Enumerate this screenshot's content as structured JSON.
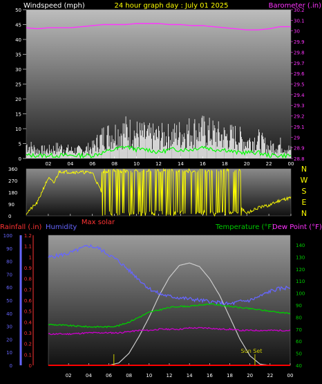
{
  "header": {
    "left_label": "Windspeed (mph)",
    "center_label": "24 hour graph day : July 01 2025",
    "right_label": "Barometer (.in)"
  },
  "wind_panel": {
    "y_left_ticks": [
      "50",
      "45",
      "40",
      "35",
      "30",
      "25",
      "20",
      "15",
      "10",
      "5",
      "0"
    ],
    "y_right_ticks": [
      "30.2",
      "30.1",
      "30",
      "29.9",
      "29.8",
      "29.7",
      "29.6",
      "29.5",
      "29.4",
      "29.3",
      "29.2",
      "29.1",
      "29",
      "28.9",
      "28.8"
    ],
    "x_ticks": [
      "02",
      "04",
      "06",
      "08",
      "10",
      "12",
      "14",
      "16",
      "18",
      "20",
      "22",
      "00"
    ]
  },
  "direction_panel": {
    "y_ticks": [
      "360",
      "270",
      "180",
      "90",
      "0"
    ],
    "compass": [
      "N",
      "W",
      "S",
      "E",
      "N"
    ],
    "x_ticks": [
      "02",
      "04",
      "06",
      "08",
      "10",
      "12",
      "14",
      "16",
      "18",
      "20",
      "22",
      "00"
    ],
    "below_label": "Max solar"
  },
  "temp_panel": {
    "labels": {
      "rainfall": "Rainfall (.in)",
      "humidity": "Humidity",
      "temperature": "Temperature (°F)",
      "dewpoint": "Dew Point (°F)",
      "sunset": "Sun Set"
    },
    "humidity_ticks": [
      "100",
      "90",
      "80",
      "70",
      "60",
      "50",
      "40",
      "30",
      "20",
      "10",
      "0"
    ],
    "rain_ticks": [
      "1.2",
      "1.1",
      "1",
      "0.9",
      "0.8",
      "0.7",
      "0.6",
      "0.5",
      "0.4",
      "0.3",
      "0.2",
      "0.1",
      "0"
    ],
    "temp_ticks": [
      "140",
      "130",
      "120",
      "110",
      "100",
      "90",
      "80",
      "70",
      "60",
      "50",
      "40"
    ],
    "x_ticks": [
      "02",
      "04",
      "06",
      "08",
      "10",
      "12",
      "14",
      "16",
      "18",
      "20",
      "22",
      "00"
    ]
  },
  "colors": {
    "windspeed": "#ffffff",
    "windavg": "#00ff00",
    "barometer": "#ff33ff",
    "direction": "#ffff00",
    "humidity": "#6666ff",
    "temperature": "#00cc00",
    "dewpoint": "#cc00cc",
    "rain": "#ff0000",
    "solar": "#cccccc",
    "sunmarker": "#cccc00"
  },
  "chart_data": [
    {
      "type": "line",
      "title": "24 hour graph day : July 01 2025",
      "xlabel": "",
      "ylabel": "Windspeed (mph)",
      "y2label": "Barometer (.in)",
      "x_hours": [
        0,
        1,
        2,
        3,
        4,
        5,
        6,
        7,
        8,
        9,
        10,
        11,
        12,
        13,
        14,
        15,
        16,
        17,
        18,
        19,
        20,
        21,
        22,
        23,
        24
      ],
      "ylim": [
        0,
        50
      ],
      "y2lim": [
        28.8,
        30.2
      ],
      "series": [
        {
          "name": "Windspeed",
          "axis": "left",
          "values": [
            5,
            3,
            3,
            4,
            3,
            3,
            4,
            8,
            9,
            10,
            9,
            8,
            8,
            8,
            9,
            10,
            10,
            9,
            8,
            8,
            6,
            7,
            4,
            5,
            3
          ]
        },
        {
          "name": "Wind average",
          "axis": "left",
          "values": [
            1,
            1,
            1,
            1,
            1,
            1,
            1,
            2,
            3,
            4,
            3,
            3,
            2,
            3,
            3,
            3,
            4,
            3,
            3,
            2,
            2,
            2,
            1,
            1,
            1
          ]
        },
        {
          "name": "Barometer",
          "axis": "right",
          "values": [
            30.03,
            30.02,
            30.03,
            30.03,
            30.03,
            30.04,
            30.05,
            30.06,
            30.06,
            30.06,
            30.07,
            30.07,
            30.07,
            30.06,
            30.06,
            30.05,
            30.05,
            30.04,
            30.03,
            30.02,
            30.01,
            30.01,
            30.02,
            30.04,
            30.04
          ]
        }
      ]
    },
    {
      "type": "line",
      "ylabel": "Wind direction",
      "ylim": [
        0,
        360
      ],
      "x_hours": [
        0,
        0.5,
        1,
        1.5,
        2,
        2.5,
        3,
        4,
        5,
        6,
        7,
        8,
        9,
        10,
        11,
        12,
        13,
        14,
        15,
        16,
        17,
        18,
        19,
        20,
        21,
        22,
        23,
        24
      ],
      "series": [
        {
          "name": "Direction",
          "values": [
            20,
            60,
            100,
            200,
            290,
            250,
            340,
            335,
            335,
            330,
            150,
            200,
            180,
            220,
            170,
            200,
            190,
            180,
            160,
            150,
            140,
            120,
            100,
            20,
            60,
            80,
            120,
            140
          ]
        }
      ]
    },
    {
      "type": "line",
      "ylabel": "Humidity / Temperature / Dew Point / Rainfall",
      "x_hours": [
        0,
        2,
        4,
        5,
        6,
        7,
        8,
        9,
        10,
        11,
        12,
        13,
        14,
        15,
        16,
        17,
        18,
        19,
        20,
        21,
        22,
        23,
        24
      ],
      "ylim_humidity": [
        0,
        100
      ],
      "ylim_temp": [
        40,
        140
      ],
      "ylim_rain": [
        0,
        1.2
      ],
      "series": [
        {
          "name": "Humidity",
          "axis": "humidity",
          "values": [
            83,
            86,
            92,
            90,
            85,
            80,
            73,
            66,
            59,
            55,
            53,
            52,
            51,
            50,
            49,
            48,
            47,
            49,
            50,
            53,
            57,
            59,
            60
          ]
        },
        {
          "name": "Temperature",
          "axis": "temp",
          "values": [
            74,
            73,
            72,
            72,
            72,
            73,
            76,
            80,
            84,
            86,
            88,
            89,
            89,
            90,
            91,
            90,
            89,
            88,
            87,
            86,
            85,
            84,
            83
          ]
        },
        {
          "name": "Dew Point",
          "axis": "temp",
          "values": [
            66,
            66,
            67,
            67,
            67,
            67,
            68,
            69,
            69,
            70,
            70,
            70,
            71,
            71,
            71,
            70,
            70,
            69,
            69,
            69,
            69,
            69,
            69
          ]
        },
        {
          "name": "Rainfall",
          "axis": "rain",
          "values": [
            0,
            0,
            0,
            0,
            0,
            0,
            0,
            0,
            0,
            0,
            0,
            0,
            0,
            0,
            0,
            0,
            0,
            0,
            0,
            0,
            0,
            0,
            0
          ]
        },
        {
          "name": "Max solar",
          "axis": "temp",
          "values": [
            40,
            40,
            40,
            40,
            40,
            42,
            50,
            64,
            80,
            98,
            113,
            123,
            125,
            122,
            112,
            98,
            80,
            62,
            48,
            41,
            40,
            40,
            40
          ]
        }
      ],
      "sunrise_hour": 6.5,
      "sunset_hour": 20.5
    }
  ]
}
